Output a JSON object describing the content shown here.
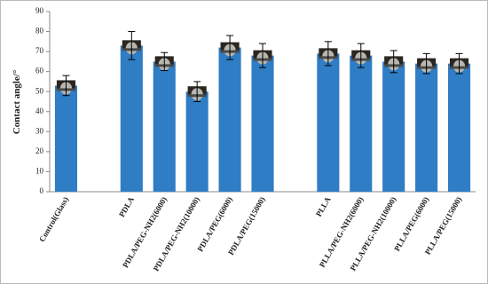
{
  "chart_data": {
    "type": "bar",
    "y_label": "Contact angle/°",
    "categories": [
      "Control(Glass)",
      null,
      "PDLA",
      "PDLA/PEG-NH2(6000)",
      "PDLA/PEG-NH2(10000)",
      "PDLA/PEG(6000)",
      "PDLA/PEG(15000)",
      null,
      "PLLA",
      "PLLA/PEG-NH2(6000)",
      "PLLA/PEG-NH2(10000)",
      "PLLA/PEG(6000)",
      "PLLA/PEG(15000)"
    ],
    "values": [
      53,
      null,
      73,
      65,
      50,
      72,
      68,
      null,
      69,
      68,
      65,
      64,
      64
    ],
    "errors": [
      5,
      null,
      7,
      4.5,
      5,
      6,
      6,
      null,
      6,
      6,
      5.5,
      5,
      5
    ],
    "color": "#2e7dc5",
    "ylim": [
      0,
      90
    ],
    "yticks": [
      0,
      10,
      20,
      30,
      40,
      50,
      60,
      70,
      80,
      90
    ]
  }
}
